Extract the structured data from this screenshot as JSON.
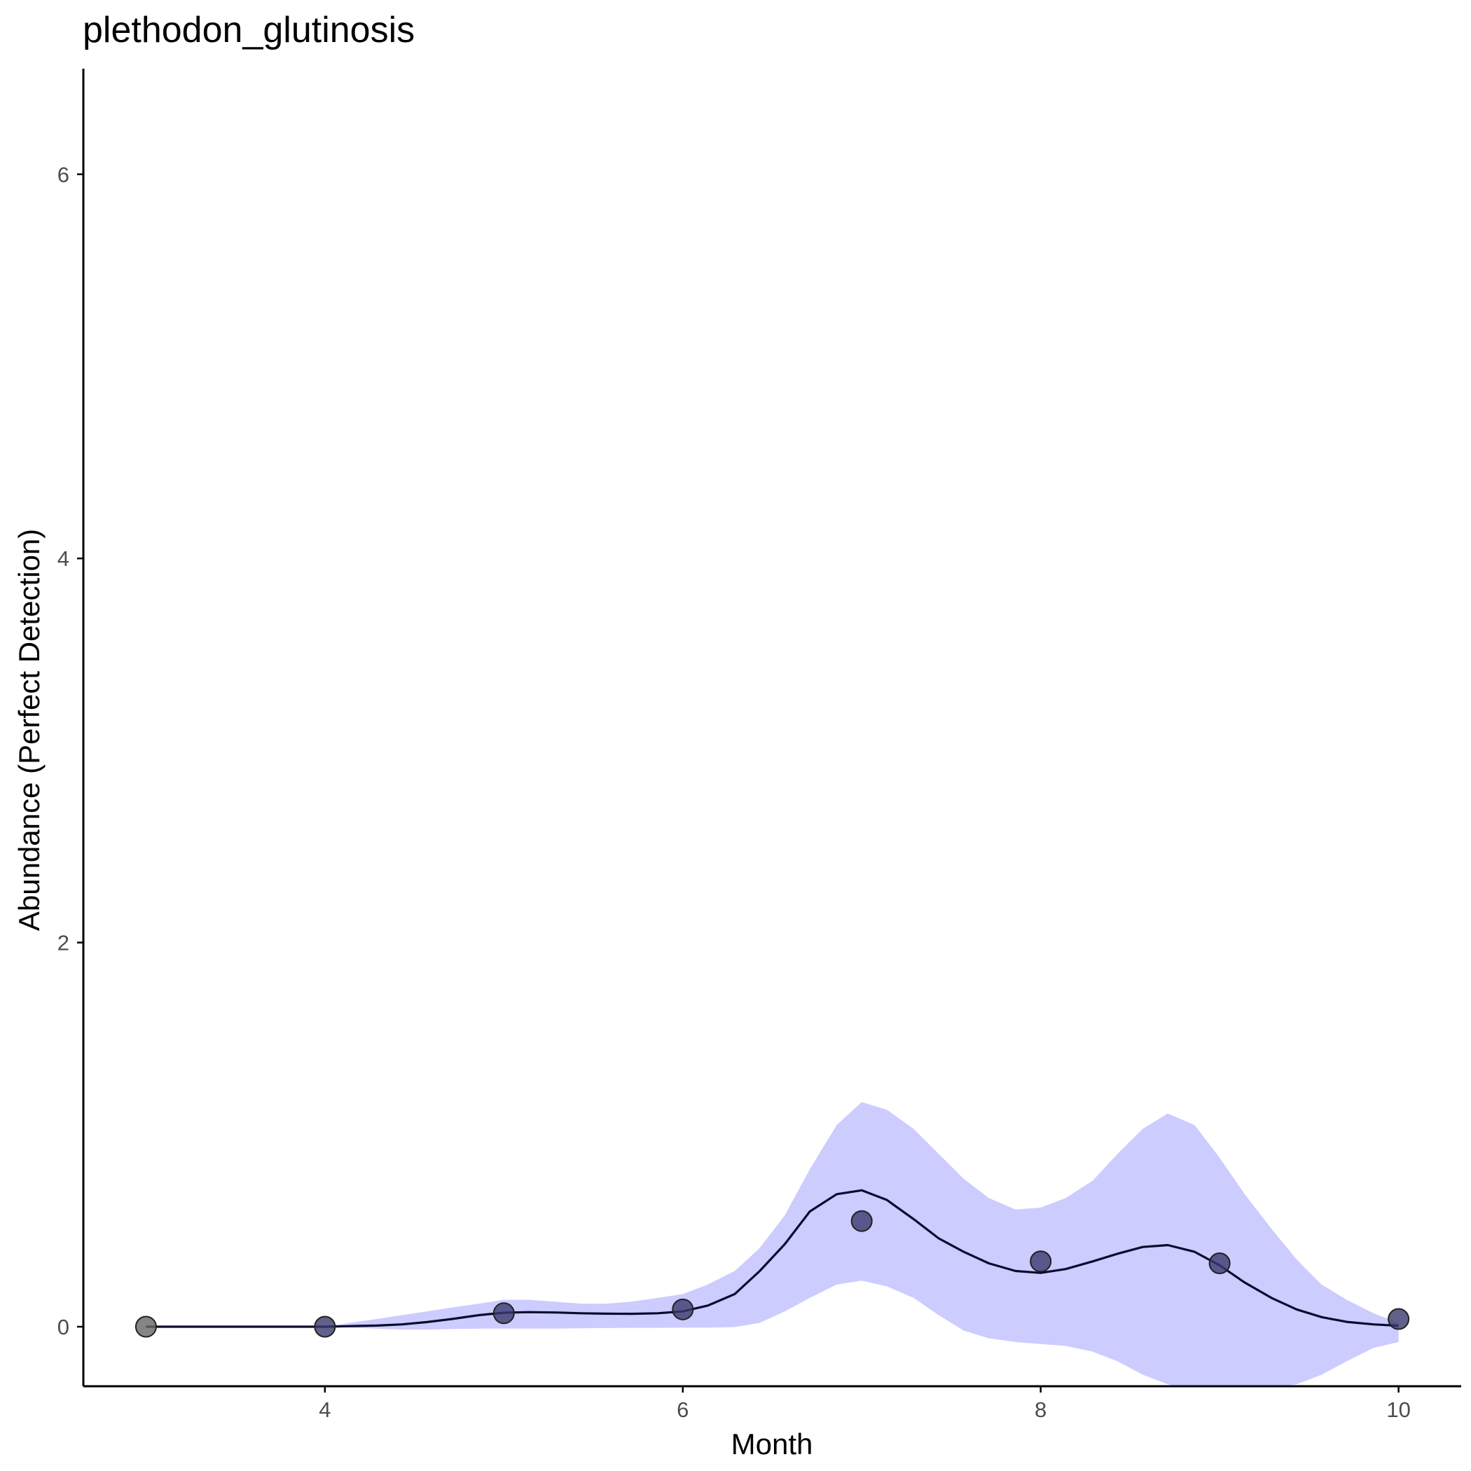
{
  "chart_data": {
    "type": "line",
    "title": "plethodon_glutinosis",
    "xlabel": "Month",
    "ylabel": "Abundance (Perfect Detection)",
    "xlim": [
      2.65,
      10.35
    ],
    "ylim": [
      -0.31,
      6.55
    ],
    "xticks": [
      4,
      6,
      8,
      10
    ],
    "yticks": [
      0,
      2,
      4,
      6
    ],
    "grid": false,
    "legend": "none",
    "colors": {
      "ribbon": "#ccccff",
      "line": "#0a0a2e",
      "point_fill": "#3a3a6e",
      "point_fill_outside_ribbon": "#666666",
      "axis": "#000000"
    },
    "points": {
      "x": [
        3,
        4,
        5,
        6,
        7,
        8,
        9,
        10
      ],
      "y": [
        0.0,
        0.0,
        0.07,
        0.09,
        0.55,
        0.34,
        0.33,
        0.04
      ]
    },
    "fitted_line": {
      "x": [
        3.0,
        4.0,
        4.14,
        4.29,
        4.43,
        4.57,
        4.71,
        4.86,
        5.0,
        5.14,
        5.29,
        5.43,
        5.57,
        5.71,
        5.86,
        6.0,
        6.14,
        6.29,
        6.43,
        6.57,
        6.71,
        6.86,
        7.0,
        7.14,
        7.29,
        7.43,
        7.57,
        7.71,
        7.86,
        8.0,
        8.14,
        8.29,
        8.43,
        8.57,
        8.71,
        8.86,
        9.0,
        9.14,
        9.29,
        9.43,
        9.57,
        9.71,
        9.86,
        10.0
      ],
      "y": [
        0.0,
        0.0,
        0.003,
        0.006,
        0.012,
        0.024,
        0.04,
        0.06,
        0.073,
        0.076,
        0.074,
        0.07,
        0.068,
        0.067,
        0.07,
        0.08,
        0.11,
        0.17,
        0.29,
        0.43,
        0.6,
        0.69,
        0.71,
        0.66,
        0.56,
        0.46,
        0.39,
        0.33,
        0.29,
        0.28,
        0.3,
        0.34,
        0.38,
        0.415,
        0.425,
        0.39,
        0.32,
        0.23,
        0.15,
        0.09,
        0.05,
        0.025,
        0.012,
        0.005
      ]
    },
    "confidence_band": {
      "x": [
        4.0,
        4.14,
        4.29,
        4.43,
        4.57,
        4.71,
        4.86,
        5.0,
        5.14,
        5.29,
        5.43,
        5.57,
        5.71,
        5.86,
        6.0,
        6.14,
        6.29,
        6.43,
        6.57,
        6.71,
        6.86,
        7.0,
        7.14,
        7.29,
        7.43,
        7.57,
        7.71,
        7.86,
        8.0,
        8.14,
        8.29,
        8.43,
        8.57,
        8.71,
        8.86,
        9.0,
        9.14,
        9.29,
        9.43,
        9.57,
        9.71,
        9.86,
        10.0
      ],
      "lower": [
        0.0,
        -0.005,
        -0.01,
        -0.015,
        -0.015,
        -0.012,
        -0.01,
        -0.01,
        -0.01,
        -0.01,
        -0.008,
        -0.007,
        -0.006,
        -0.006,
        -0.005,
        -0.005,
        -0.002,
        0.02,
        0.08,
        0.15,
        0.22,
        0.24,
        0.21,
        0.15,
        0.06,
        -0.02,
        -0.06,
        -0.08,
        -0.09,
        -0.1,
        -0.13,
        -0.18,
        -0.25,
        -0.3,
        -0.33,
        -0.34,
        -0.33,
        -0.32,
        -0.3,
        -0.25,
        -0.18,
        -0.11,
        -0.08
      ],
      "upper": [
        0.0,
        0.02,
        0.04,
        0.06,
        0.08,
        0.1,
        0.12,
        0.14,
        0.14,
        0.13,
        0.12,
        0.12,
        0.13,
        0.15,
        0.17,
        0.22,
        0.29,
        0.41,
        0.58,
        0.82,
        1.05,
        1.17,
        1.13,
        1.03,
        0.9,
        0.77,
        0.67,
        0.61,
        0.62,
        0.67,
        0.76,
        0.9,
        1.03,
        1.11,
        1.05,
        0.88,
        0.69,
        0.51,
        0.35,
        0.22,
        0.14,
        0.07,
        0.02
      ]
    }
  }
}
